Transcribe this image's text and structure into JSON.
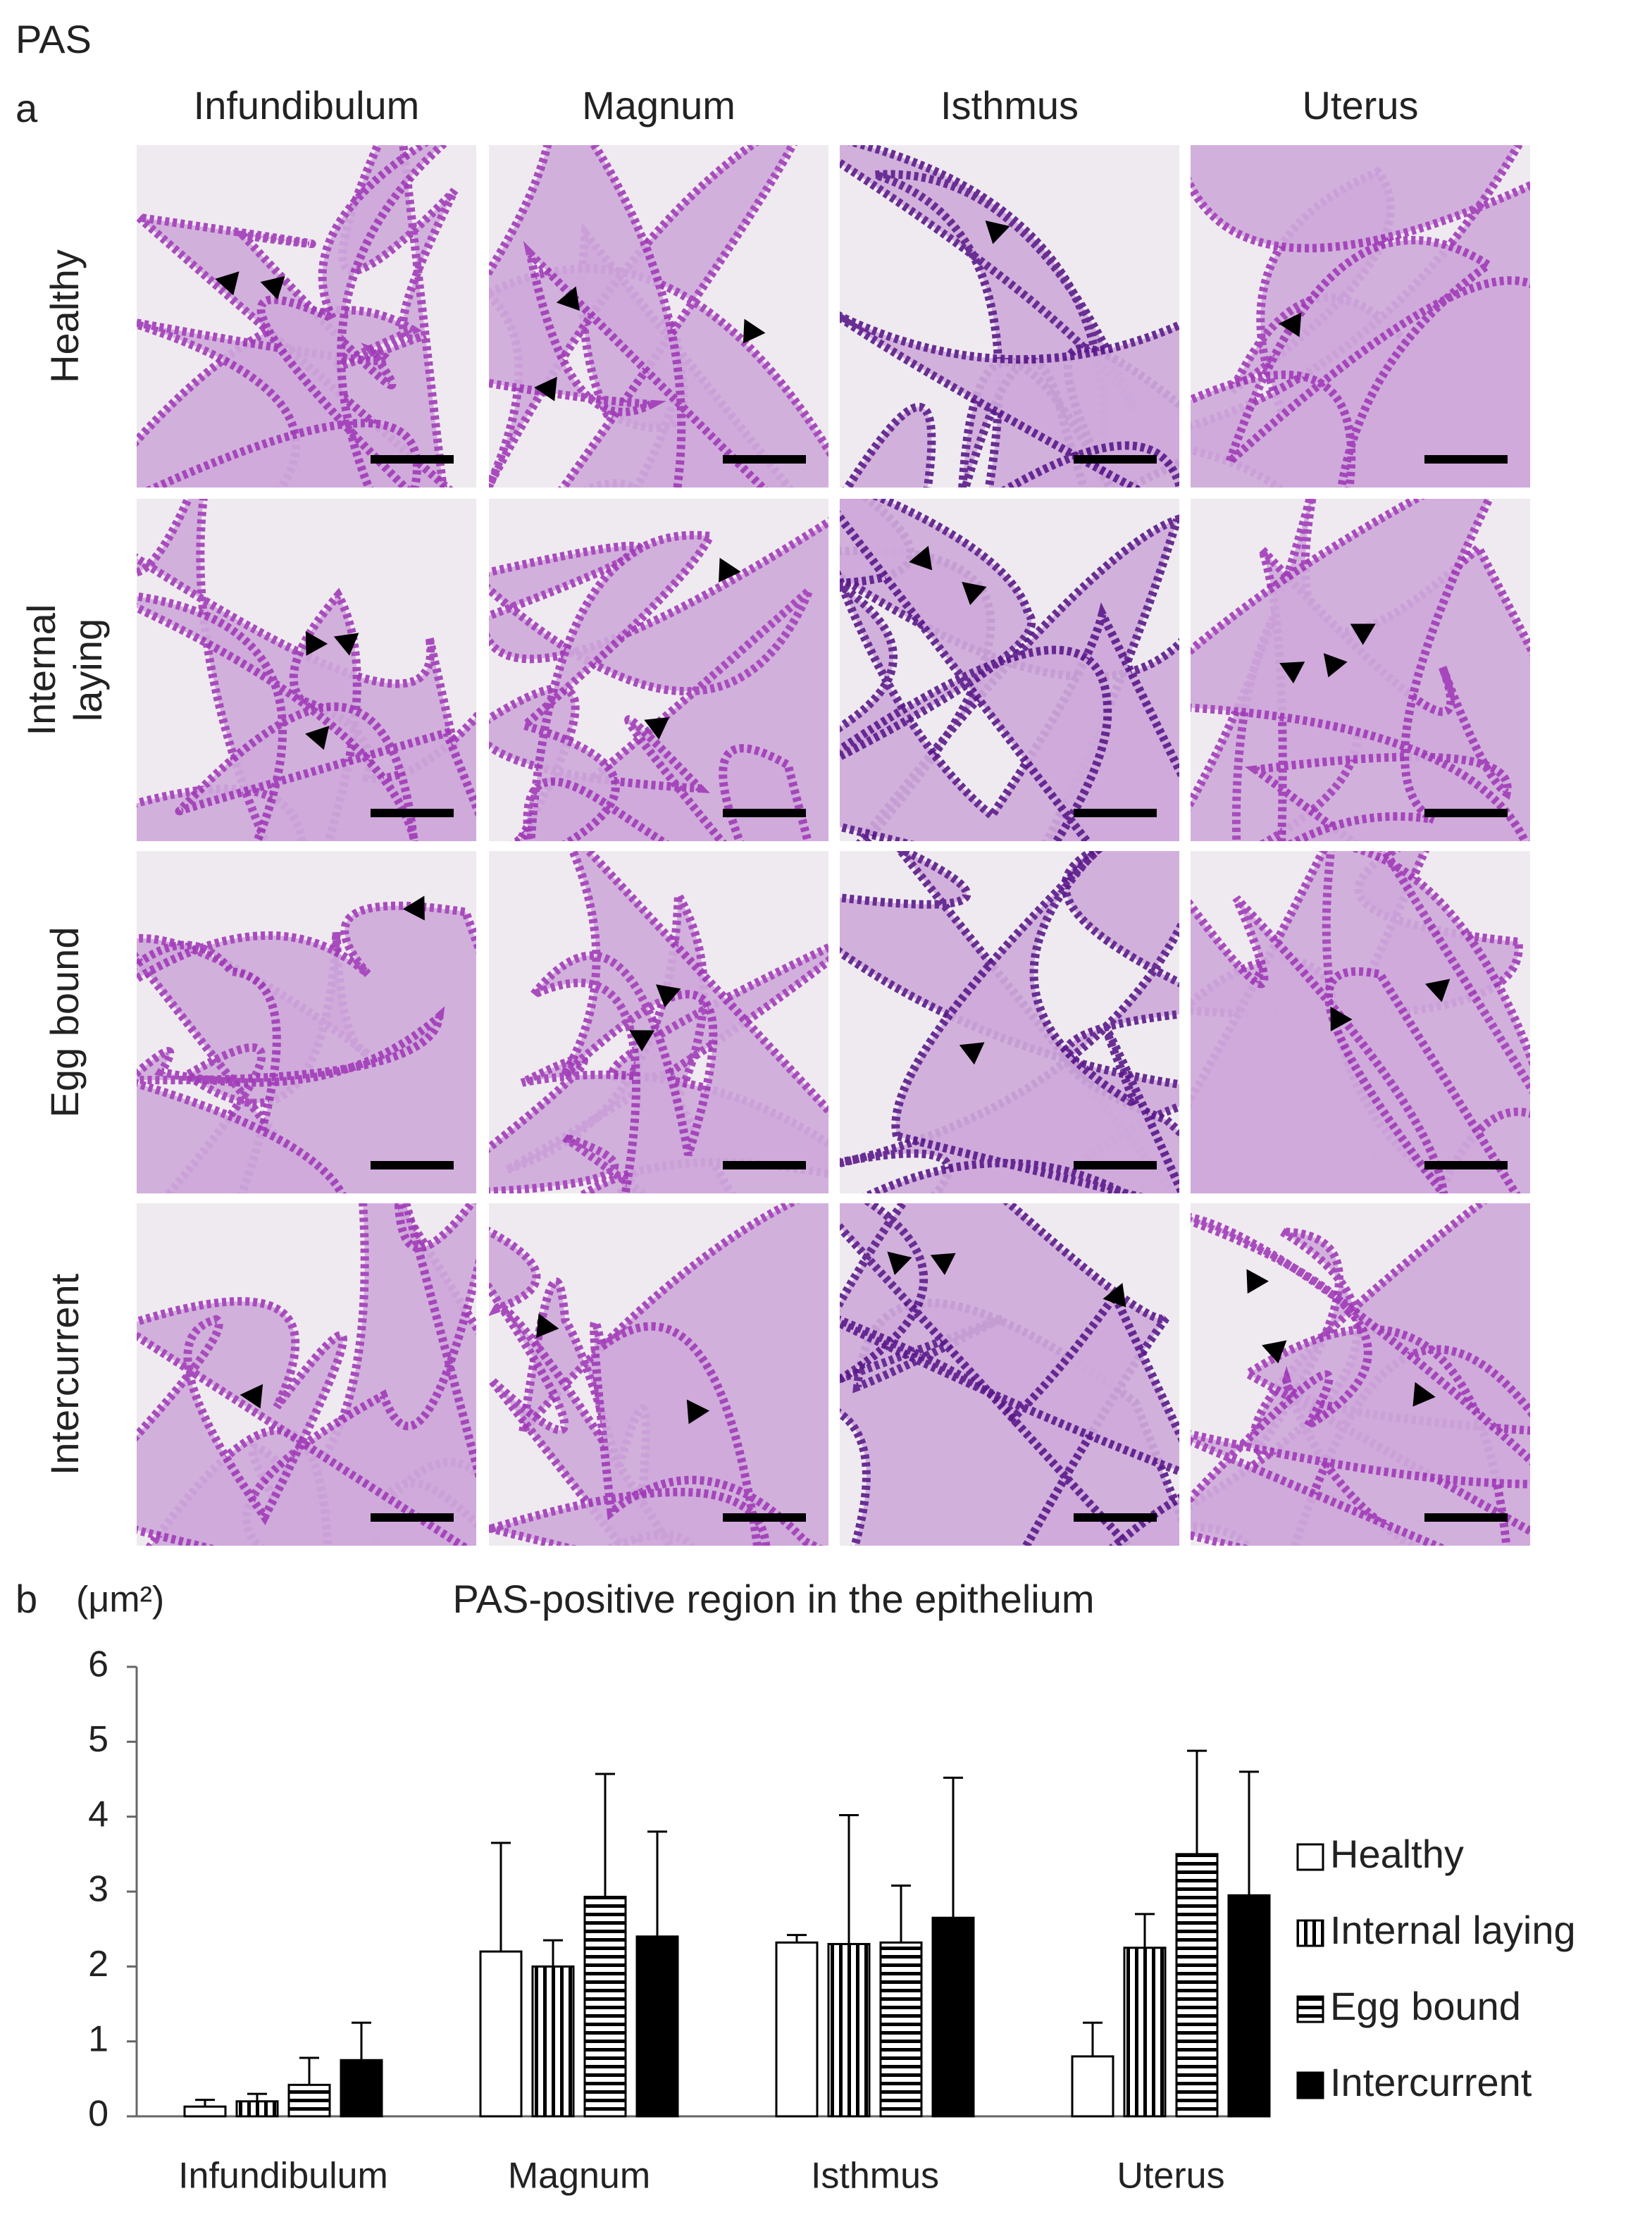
{
  "figure_label": "PAS",
  "panel_a": {
    "label": "a",
    "columns": [
      "Infundibulum",
      "Magnum",
      "Isthmus",
      "Uterus"
    ],
    "rows": [
      [
        "Healthy"
      ],
      [
        "Internal",
        "laying"
      ],
      [
        "Egg bound"
      ],
      [
        "Intercurrent"
      ]
    ]
  },
  "panel_b_label": "b",
  "chart_data": {
    "type": "bar",
    "title": "PAS-positive region in the epithelium",
    "y_label": "(μm²)",
    "categories": [
      "Infundibulum",
      "Magnum",
      "Isthmus",
      "Uterus"
    ],
    "series": [
      {
        "name": "Healthy",
        "color": "#ffffff",
        "pattern": "solid",
        "values": [
          0.13,
          2.2,
          2.32,
          0.8
        ],
        "errors": [
          0.09,
          1.45,
          0.1,
          0.45
        ]
      },
      {
        "name": "Internal laying",
        "color": "#000000",
        "pattern": "vertical",
        "values": [
          0.2,
          2.0,
          2.3,
          2.25
        ],
        "errors": [
          0.1,
          0.35,
          1.72,
          0.45
        ]
      },
      {
        "name": "Egg bound",
        "color": "#000000",
        "pattern": "horizontal",
        "values": [
          0.42,
          2.93,
          2.32,
          3.5
        ],
        "errors": [
          0.36,
          1.64,
          0.76,
          1.38
        ]
      },
      {
        "name": "Intercurrent",
        "color": "#000000",
        "pattern": "solid",
        "values": [
          0.75,
          2.4,
          2.65,
          2.95
        ],
        "errors": [
          0.5,
          1.4,
          1.87,
          1.65
        ]
      }
    ],
    "ylim": [
      0,
      6
    ],
    "yticks": [
      0,
      1,
      2,
      3,
      4,
      5,
      6
    ],
    "grid": false,
    "legend": "right"
  }
}
